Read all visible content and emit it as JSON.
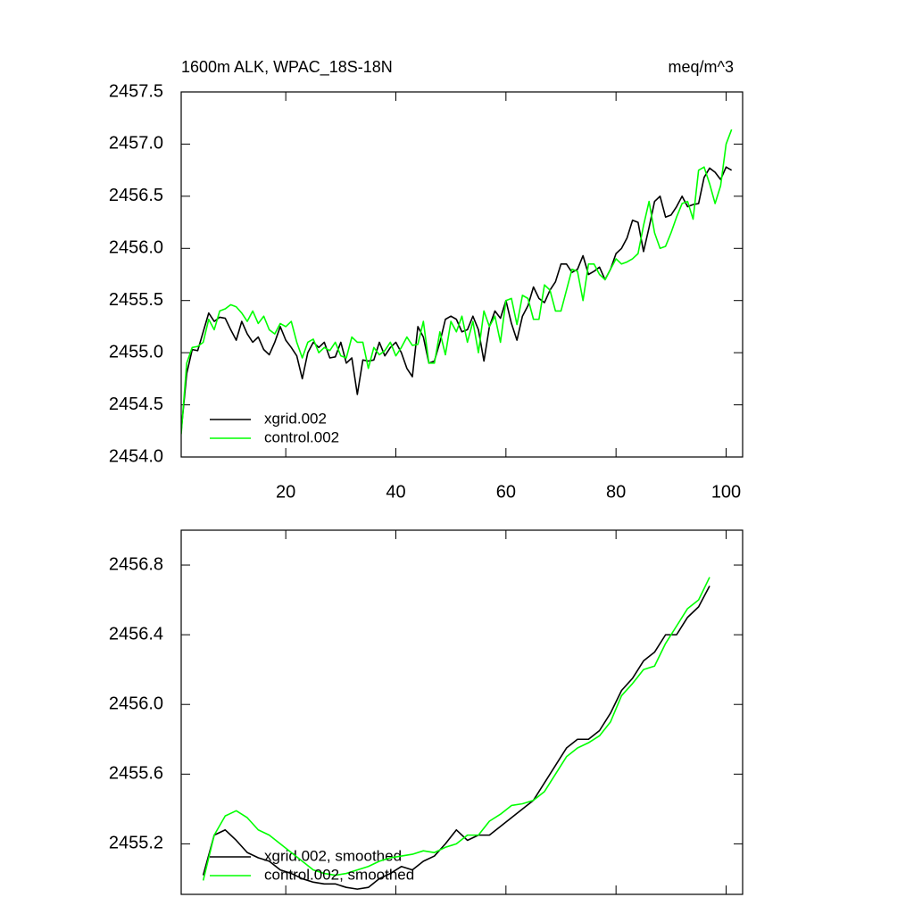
{
  "chart_data": [
    {
      "type": "line",
      "title": "1600m ALK, WPAC_18S-18N",
      "unit": "meq/m^3",
      "x": [
        1,
        2,
        3,
        4,
        5,
        6,
        7,
        8,
        9,
        10,
        11,
        12,
        13,
        14,
        15,
        16,
        17,
        18,
        19,
        20,
        21,
        22,
        23,
        24,
        25,
        26,
        27,
        28,
        29,
        30,
        31,
        32,
        33,
        34,
        35,
        36,
        37,
        38,
        39,
        40,
        41,
        42,
        43,
        44,
        45,
        46,
        47,
        48,
        49,
        50,
        51,
        52,
        53,
        54,
        55,
        56,
        57,
        58,
        59,
        60,
        61,
        62,
        63,
        64,
        65,
        66,
        67,
        68,
        69,
        70,
        71,
        72,
        73,
        74,
        75,
        76,
        77,
        78,
        79,
        80,
        81,
        82,
        83,
        84,
        85,
        86,
        87,
        88,
        89,
        90,
        91,
        92,
        93,
        94,
        95,
        96,
        97,
        98,
        99,
        100,
        101
      ],
      "series": [
        {
          "name": "xgrid.002",
          "color": "#000000",
          "values": [
            2454.25,
            2454.8,
            2455.03,
            2455.02,
            2455.2,
            2455.38,
            2455.3,
            2455.34,
            2455.33,
            2455.22,
            2455.12,
            2455.3,
            2455.18,
            2455.1,
            2455.15,
            2455.03,
            2454.98,
            2455.1,
            2455.25,
            2455.12,
            2455.05,
            2454.97,
            2454.75,
            2455.0,
            2455.1,
            2455.05,
            2455.1,
            2454.95,
            2454.96,
            2455.1,
            2454.9,
            2454.95,
            2454.6,
            2454.93,
            2454.92,
            2454.93,
            2455.1,
            2454.97,
            2455.05,
            2455.1,
            2455.0,
            2454.85,
            2454.77,
            2455.25,
            2455.15,
            2454.9,
            2454.92,
            2455.1,
            2455.32,
            2455.35,
            2455.32,
            2455.2,
            2455.22,
            2455.35,
            2455.22,
            2454.92,
            2455.25,
            2455.4,
            2455.33,
            2455.5,
            2455.28,
            2455.12,
            2455.35,
            2455.45,
            2455.63,
            2455.52,
            2455.48,
            2455.6,
            2455.68,
            2455.85,
            2455.85,
            2455.77,
            2455.8,
            2455.93,
            2455.75,
            2455.78,
            2455.82,
            2455.7,
            2455.8,
            2455.95,
            2456.0,
            2456.1,
            2456.27,
            2456.25,
            2455.97,
            2456.2,
            2456.45,
            2456.5,
            2456.3,
            2456.32,
            2456.4,
            2456.5,
            2456.4,
            2456.42,
            2456.43,
            2456.68,
            2456.77,
            2456.73,
            2456.66,
            2456.78,
            2456.75
          ]
        },
        {
          "name": "control.002",
          "color": "#00ff00",
          "values": [
            2454.22,
            2454.9,
            2455.05,
            2455.06,
            2455.1,
            2455.32,
            2455.22,
            2455.4,
            2455.42,
            2455.46,
            2455.44,
            2455.38,
            2455.3,
            2455.4,
            2455.28,
            2455.35,
            2455.22,
            2455.18,
            2455.28,
            2455.25,
            2455.3,
            2455.1,
            2454.95,
            2455.1,
            2455.13,
            2455.0,
            2455.05,
            2455.02,
            2455.1,
            2454.97,
            2454.95,
            2455.15,
            2455.1,
            2455.1,
            2454.85,
            2455.05,
            2454.98,
            2455.02,
            2455.1,
            2454.97,
            2455.05,
            2455.15,
            2455.07,
            2455.08,
            2455.3,
            2454.9,
            2454.9,
            2455.2,
            2454.98,
            2455.3,
            2455.2,
            2455.35,
            2455.1,
            2455.3,
            2455.0,
            2455.4,
            2455.25,
            2455.35,
            2455.1,
            2455.5,
            2455.52,
            2455.27,
            2455.55,
            2455.52,
            2455.32,
            2455.32,
            2455.65,
            2455.6,
            2455.4,
            2455.4,
            2455.6,
            2455.8,
            2455.78,
            2455.5,
            2455.85,
            2455.85,
            2455.75,
            2455.7,
            2455.8,
            2455.9,
            2455.85,
            2455.87,
            2455.9,
            2455.95,
            2456.22,
            2456.45,
            2456.15,
            2456.0,
            2456.02,
            2456.15,
            2456.3,
            2456.43,
            2456.45,
            2456.28,
            2456.75,
            2456.78,
            2456.62,
            2456.43,
            2456.6,
            2457.0,
            2457.14
          ]
        }
      ],
      "xlim": [
        1,
        103
      ],
      "xticks": [
        20,
        40,
        60,
        80,
        100
      ],
      "ylim": [
        2454.0,
        2457.5
      ],
      "yticks": [
        {
          "value": 2454,
          "label": "2454.0"
        },
        2454.5,
        {
          "value": 2455,
          "label": "2455.0"
        },
        2455.5,
        {
          "value": 2456,
          "label": "2456.0"
        },
        2456.5,
        {
          "value": 2457,
          "label": "2457.0"
        },
        2457.5
      ],
      "legend": "lower left"
    },
    {
      "type": "line",
      "x": [
        5,
        7,
        9,
        11,
        13,
        15,
        17,
        19,
        21,
        23,
        25,
        27,
        29,
        31,
        33,
        35,
        37,
        39,
        41,
        43,
        45,
        47,
        49,
        51,
        53,
        55,
        57,
        59,
        61,
        63,
        65,
        67,
        69,
        71,
        73,
        75,
        77,
        79,
        81,
        83,
        85,
        87,
        89,
        91,
        93,
        95,
        97
      ],
      "series": [
        {
          "name": "xgrid.002, smoothed",
          "color": "#000000",
          "values": [
            2455.02,
            2455.25,
            2455.28,
            2455.22,
            2455.15,
            2455.12,
            2455.1,
            2455.05,
            2455.03,
            2455.0,
            2454.98,
            2454.97,
            2454.97,
            2454.95,
            2454.94,
            2454.95,
            2455.0,
            2455.03,
            2455.07,
            2455.05,
            2455.1,
            2455.13,
            2455.2,
            2455.28,
            2455.22,
            2455.25,
            2455.25,
            2455.3,
            2455.35,
            2455.4,
            2455.45,
            2455.55,
            2455.65,
            2455.75,
            2455.8,
            2455.8,
            2455.85,
            2455.95,
            2456.08,
            2456.15,
            2456.25,
            2456.3,
            2456.4,
            2456.4,
            2456.5,
            2456.56,
            2456.68
          ]
        },
        {
          "name": "control.002, smoothed",
          "color": "#00ff00",
          "values": [
            2454.99,
            2455.25,
            2455.36,
            2455.39,
            2455.35,
            2455.28,
            2455.25,
            2455.2,
            2455.15,
            2455.1,
            2455.05,
            2455.03,
            2455.02,
            2455.03,
            2455.05,
            2455.07,
            2455.1,
            2455.12,
            2455.13,
            2455.14,
            2455.16,
            2455.15,
            2455.18,
            2455.2,
            2455.25,
            2455.25,
            2455.33,
            2455.37,
            2455.42,
            2455.43,
            2455.45,
            2455.5,
            2455.6,
            2455.7,
            2455.75,
            2455.78,
            2455.82,
            2455.9,
            2456.05,
            2456.12,
            2456.2,
            2456.22,
            2456.35,
            2456.45,
            2456.55,
            2456.6,
            2456.73
          ]
        }
      ],
      "xlim": [
        1,
        103
      ],
      "xticks": [
        20,
        40,
        60,
        80,
        100
      ],
      "ylim": [
        2454.91,
        2457.0
      ],
      "yticks": [
        2455.2,
        2455.6,
        {
          "value": 2456,
          "label": "2456.0"
        },
        2456.4,
        2456.8
      ],
      "legend": "lower left"
    }
  ]
}
